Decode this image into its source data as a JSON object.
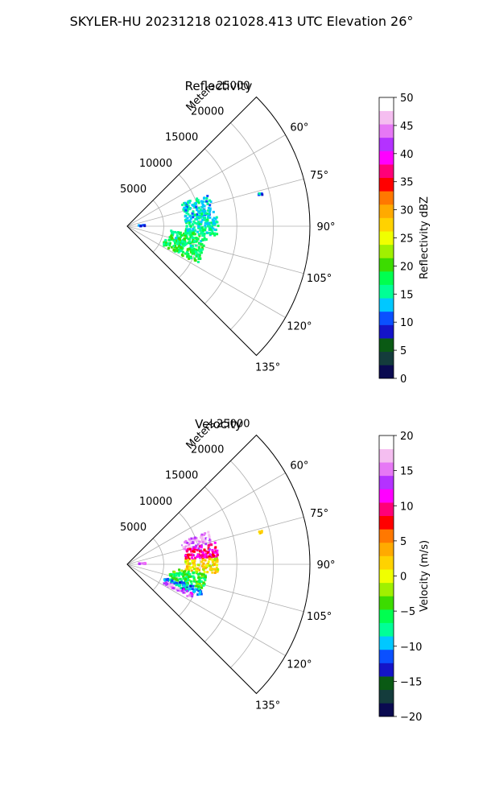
{
  "suptitle": "SKYLER-HU  20231218  021028.413 UTC Elevation 26°",
  "chart_data": [
    {
      "type": "heatmap",
      "projection": "polar-sector",
      "title": "Reflectivity",
      "radial_axis_label": "Meters",
      "r_ticks": [
        5000,
        10000,
        15000,
        20000,
        25000
      ],
      "r_tick_labels": [
        "5000",
        "10000",
        "15000",
        "20000",
        "25000"
      ],
      "rlim": [
        0,
        25000
      ],
      "theta_ticks": [
        60,
        75,
        90,
        105,
        120,
        135
      ],
      "theta_tick_labels": [
        "60°",
        "75°",
        "90°",
        "105°",
        "120°",
        "135°"
      ],
      "thetalim": [
        45,
        135
      ],
      "grid": true,
      "colorbar": {
        "label": "Reflectivity dBZ",
        "ticks": [
          0,
          5,
          10,
          15,
          20,
          25,
          30,
          35,
          40,
          45,
          50
        ],
        "tick_labels": [
          "0",
          "5",
          "10",
          "15",
          "20",
          "25",
          "30",
          "35",
          "40",
          "45",
          "50"
        ],
        "range": [
          0,
          50
        ],
        "colors": [
          "#0a0a50",
          "#143c3c",
          "#0a5a14",
          "#1414c8",
          "#0a50ff",
          "#00c8ff",
          "#00ff96",
          "#00ff50",
          "#3cdc00",
          "#a0f000",
          "#f0ff00",
          "#ffd200",
          "#ffaa00",
          "#ff7800",
          "#ff0000",
          "#ff0078",
          "#ff00ff",
          "#b432ff",
          "#e678f5",
          "#f5bef0",
          "#ffffff"
        ]
      },
      "echo_regions": [
        {
          "theta_range": [
            68,
            84
          ],
          "r_range": [
            8000,
            12000
          ],
          "value": 14
        },
        {
          "theta_range": [
            84,
            96
          ],
          "r_range": [
            8000,
            12500
          ],
          "value": 15
        },
        {
          "theta_range": [
            96,
            110
          ],
          "r_range": [
            6000,
            11000
          ],
          "value": 17
        },
        {
          "theta_range": [
            110,
            118
          ],
          "r_range": [
            5500,
            11000
          ],
          "value": 18
        },
        {
          "theta_range": [
            86,
            90
          ],
          "r_range": [
            1500,
            2500
          ],
          "value": 12
        },
        {
          "theta_range": [
            76,
            77
          ],
          "r_range": [
            18500,
            19000
          ],
          "value": 12
        }
      ]
    },
    {
      "type": "heatmap",
      "projection": "polar-sector",
      "title": "Velocity",
      "radial_axis_label": "Meters",
      "r_ticks": [
        5000,
        10000,
        15000,
        20000,
        25000
      ],
      "r_tick_labels": [
        "5000",
        "10000",
        "15000",
        "20000",
        "25000"
      ],
      "rlim": [
        0,
        25000
      ],
      "theta_ticks": [
        60,
        75,
        90,
        105,
        120,
        135
      ],
      "theta_tick_labels": [
        "60°",
        "75°",
        "90°",
        "105°",
        "120°",
        "135°"
      ],
      "thetalim": [
        45,
        135
      ],
      "grid": true,
      "colorbar": {
        "label": "Velocity (m/s)",
        "ticks": [
          -20,
          -15,
          -10,
          -5,
          0,
          5,
          10,
          15,
          20
        ],
        "tick_labels": [
          "−20",
          "−15",
          "−10",
          "−5",
          "0",
          "5",
          "10",
          "15",
          "20"
        ],
        "range": [
          -20,
          20
        ],
        "colors": [
          "#0a0a50",
          "#143c3c",
          "#0a5a14",
          "#1414c8",
          "#0a50ff",
          "#00c8ff",
          "#00ff96",
          "#00ff50",
          "#3cdc00",
          "#a0f000",
          "#f0ff00",
          "#ffd200",
          "#ffaa00",
          "#ff7800",
          "#ff0000",
          "#ff0078",
          "#ff00ff",
          "#b432ff",
          "#e678f5",
          "#f5bef0",
          "#ffffff"
        ]
      },
      "echo_regions": [
        {
          "theta_range": [
            68,
            76
          ],
          "r_range": [
            8000,
            12000
          ],
          "value": 16
        },
        {
          "theta_range": [
            76,
            86
          ],
          "r_range": [
            8000,
            12500
          ],
          "value": 10
        },
        {
          "theta_range": [
            86,
            96
          ],
          "r_range": [
            8000,
            12500
          ],
          "value": 1
        },
        {
          "theta_range": [
            96,
            108
          ],
          "r_range": [
            6000,
            11000
          ],
          "value": -5
        },
        {
          "theta_range": [
            108,
            114
          ],
          "r_range": [
            5500,
            11000
          ],
          "value": -10
        },
        {
          "theta_range": [
            114,
            118
          ],
          "r_range": [
            5500,
            10000
          ],
          "value": 15
        },
        {
          "theta_range": [
            86,
            90
          ],
          "r_range": [
            1500,
            2500
          ],
          "value": 12
        },
        {
          "theta_range": [
            76,
            77
          ],
          "r_range": [
            18500,
            19000
          ],
          "value": 3
        }
      ]
    }
  ]
}
